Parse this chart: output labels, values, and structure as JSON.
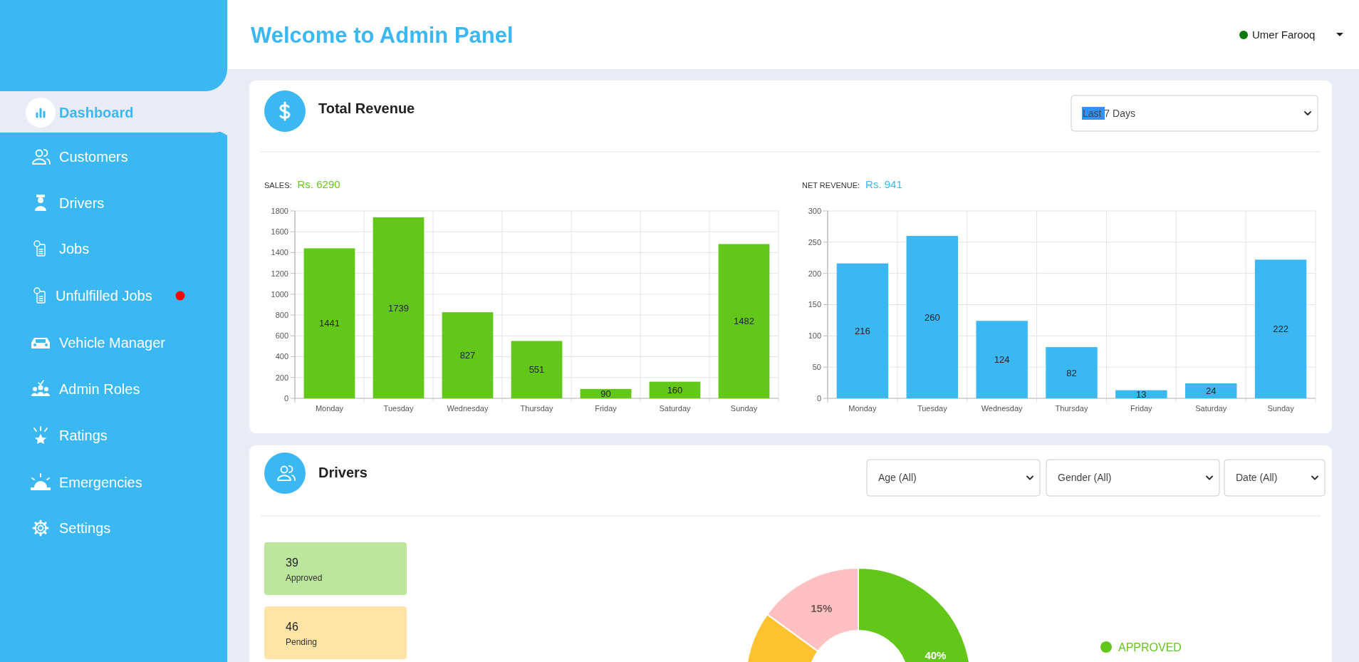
{
  "chart_data": [
    {
      "type": "other",
      "title": "Welcome to Admin Panel",
      "annotations": [
        "Umer Farooq",
        "Dashboard",
        "Customers",
        "Drivers",
        "Jobs",
        "Unfulfilled Jobs",
        "Vehicle Manager",
        "Admin Roles",
        "Ratings",
        "Emergencies",
        "Settings",
        "Total Revenue",
        "Last 7 Days",
        "Drivers",
        "Age (All)",
        "Gender (All)",
        "Date (All)",
        "39",
        "Approved",
        "46",
        "Pending"
      ]
    },
    {
      "type": "bar",
      "title": "SALES:",
      "subtitle": "Rs. 6290",
      "categories": [
        "Monday",
        "Tuesday",
        "Wednesday",
        "Thursday",
        "Friday",
        "Saturday",
        "Sunday"
      ],
      "values": [
        1441,
        1739,
        827,
        551,
        90,
        160,
        1482
      ],
      "color": "#63c71a",
      "ylim": [
        0,
        1800
      ],
      "yticks": [
        0,
        200,
        400,
        600,
        800,
        1000,
        1200,
        1400,
        1600,
        1800
      ],
      "grid": true,
      "data_labels": true
    },
    {
      "type": "bar",
      "title": "NET REVENUE:",
      "subtitle": "Rs. 941",
      "categories": [
        "Monday",
        "Tuesday",
        "Wednesday",
        "Thursday",
        "Friday",
        "Saturday",
        "Sunday"
      ],
      "values": [
        216,
        260,
        124,
        82,
        13,
        24,
        222
      ],
      "color": "#3bb7f2",
      "ylim": [
        0,
        300
      ],
      "yticks": [
        0,
        50,
        100,
        150,
        200,
        250,
        300
      ],
      "grid": true,
      "data_labels": true
    },
    {
      "type": "donut",
      "categories": [
        "APPROVED",
        null,
        null
      ],
      "values": [
        40,
        45,
        15
      ],
      "colors": [
        "#63c71a",
        "#fec22e",
        "#fec0c0"
      ],
      "value_labels": [
        "40%",
        null,
        "15%"
      ],
      "legend": "right"
    }
  ]
}
